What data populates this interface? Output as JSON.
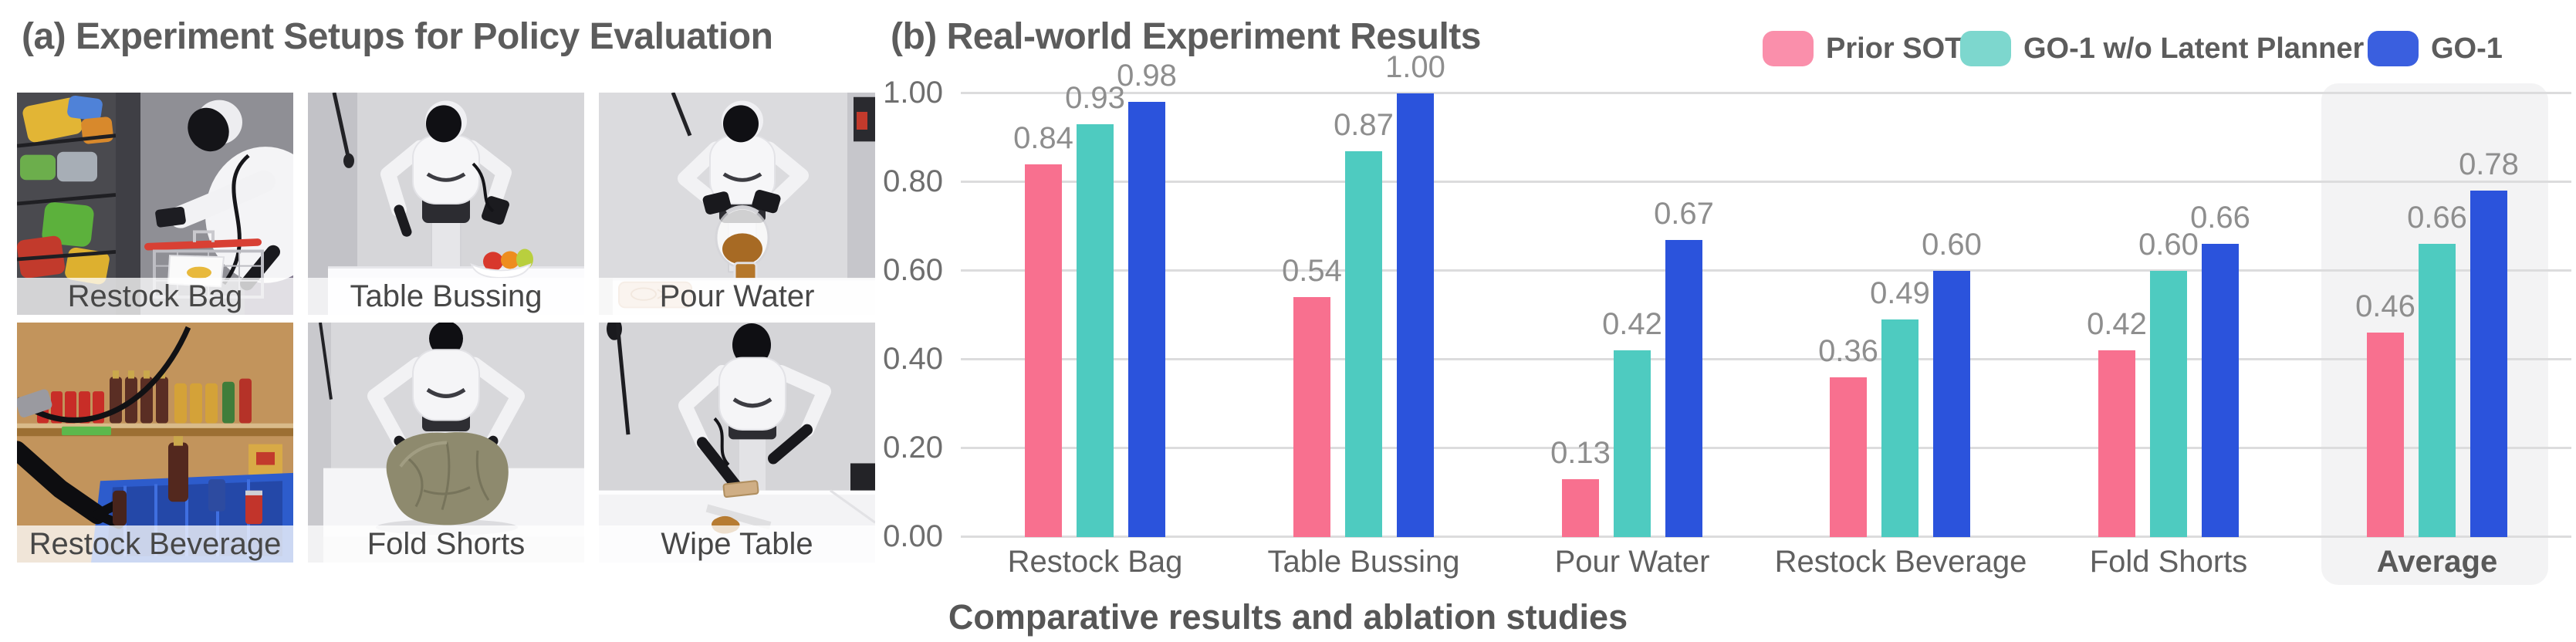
{
  "figure": {
    "panel_a_title": "(a) Experiment Setups for Policy Evaluation",
    "panel_b_title": "(b) Real-world Experiment Results",
    "caption": "Comparative results and ablation studies"
  },
  "panel_a": {
    "photos": [
      {
        "label": "Restock Bag"
      },
      {
        "label": "Table Bussing"
      },
      {
        "label": "Pour Water"
      },
      {
        "label": "Restock Beverage"
      },
      {
        "label": "Fold Shorts"
      },
      {
        "label": "Wipe Table"
      }
    ]
  },
  "legend": {
    "items": [
      {
        "label": "Prior SOTA",
        "color": "#FA8FAB"
      },
      {
        "label": "GO-1 w/o Latent Planner",
        "color": "#7DD7CE"
      },
      {
        "label": "GO-1",
        "color": "#3A5FDF"
      }
    ]
  },
  "chart_data": {
    "type": "bar",
    "title": "(b) Real-world Experiment Results",
    "categories": [
      "Restock Bag",
      "Table Bussing",
      "Pour Water",
      "Restock Beverage",
      "Fold Shorts",
      "Average"
    ],
    "series": [
      {
        "name": "Prior SOTA",
        "color": "#F8708F",
        "values": [
          0.84,
          0.54,
          0.13,
          0.36,
          0.42,
          0.46
        ]
      },
      {
        "name": "GO-1 w/o Latent Planner",
        "color": "#4ECBC0",
        "values": [
          0.93,
          0.87,
          0.42,
          0.49,
          0.6,
          0.66
        ]
      },
      {
        "name": "GO-1",
        "color": "#2B53DC",
        "values": [
          0.98,
          1.0,
          0.67,
          0.6,
          0.66,
          0.78
        ]
      }
    ],
    "ylim": [
      0,
      1.0
    ],
    "yticks": [
      0,
      0.2,
      0.4,
      0.6,
      0.8,
      1.0
    ],
    "grid": true,
    "value_labels": true,
    "value_label_format": "0.00",
    "legend_position": "top-right",
    "highlight_category": "Average",
    "xlabel": "",
    "ylabel": ""
  }
}
